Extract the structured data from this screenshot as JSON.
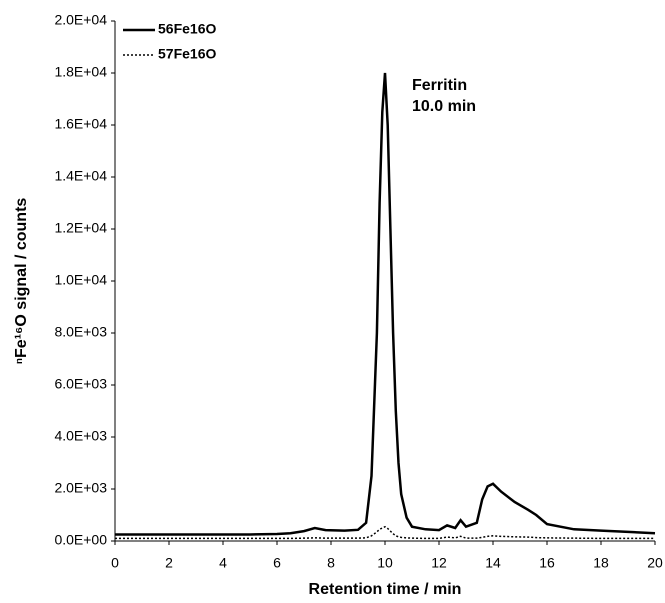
{
  "chart_data": {
    "type": "line",
    "y_label": "ⁿFe¹⁶O signal  / counts",
    "x_label": "Retention time / min",
    "annotation": [
      "Ferritin",
      "10.0 min"
    ],
    "x": [
      0,
      1,
      2,
      3,
      4,
      5,
      6,
      6.5,
      7,
      7.4,
      7.8,
      8.5,
      9,
      9.3,
      9.5,
      9.7,
      9.8,
      9.9,
      10,
      10.1,
      10.2,
      10.3,
      10.4,
      10.5,
      10.6,
      10.8,
      11,
      11.5,
      12,
      12.3,
      12.6,
      12.8,
      13,
      13.4,
      13.6,
      13.8,
      14,
      14.3,
      14.8,
      15.3,
      15.6,
      16,
      17,
      18,
      19,
      20
    ],
    "series": [
      {
        "name": "56Fe16O",
        "color": "#000000",
        "line_style": "solid",
        "values": [
          250,
          250,
          250,
          250,
          250,
          250,
          270,
          300,
          380,
          500,
          420,
          400,
          430,
          700,
          2500,
          8000,
          13000,
          16500,
          18000,
          16000,
          12000,
          8000,
          5000,
          3000,
          1800,
          900,
          550,
          450,
          420,
          600,
          500,
          800,
          550,
          700,
          1600,
          2100,
          2200,
          1900,
          1500,
          1200,
          1000,
          650,
          450,
          400,
          350,
          300
        ]
      },
      {
        "name": "57Fe16O",
        "color": "#000000",
        "line_style": "dotted",
        "values": [
          100,
          100,
          100,
          100,
          100,
          100,
          100,
          100,
          110,
          120,
          110,
          110,
          110,
          120,
          200,
          350,
          450,
          500,
          550,
          480,
          380,
          280,
          200,
          160,
          140,
          120,
          110,
          100,
          100,
          150,
          120,
          180,
          110,
          110,
          140,
          180,
          200,
          180,
          160,
          150,
          130,
          120,
          110,
          100,
          100,
          100
        ]
      }
    ],
    "xlim": [
      0,
      20
    ],
    "xticks": [
      0,
      2,
      4,
      6,
      8,
      10,
      12,
      14,
      16,
      18,
      20
    ],
    "ylim": [
      0,
      20000
    ],
    "yticks": [
      {
        "value": 0,
        "label": "0.0E+00"
      },
      {
        "value": 2000,
        "label": "2.0E+03"
      },
      {
        "value": 4000,
        "label": "4.0E+03"
      },
      {
        "value": 6000,
        "label": "6.0E+03"
      },
      {
        "value": 8000,
        "label": "8.0E+03"
      },
      {
        "value": 10000,
        "label": "1.0E+04"
      },
      {
        "value": 12000,
        "label": "1.2E+04"
      },
      {
        "value": 14000,
        "label": "1.4E+04"
      },
      {
        "value": 16000,
        "label": "1.6E+04"
      },
      {
        "value": 18000,
        "label": "1.8E+04"
      },
      {
        "value": 20000,
        "label": "2.0E+04"
      }
    ],
    "legend": "top-left"
  }
}
